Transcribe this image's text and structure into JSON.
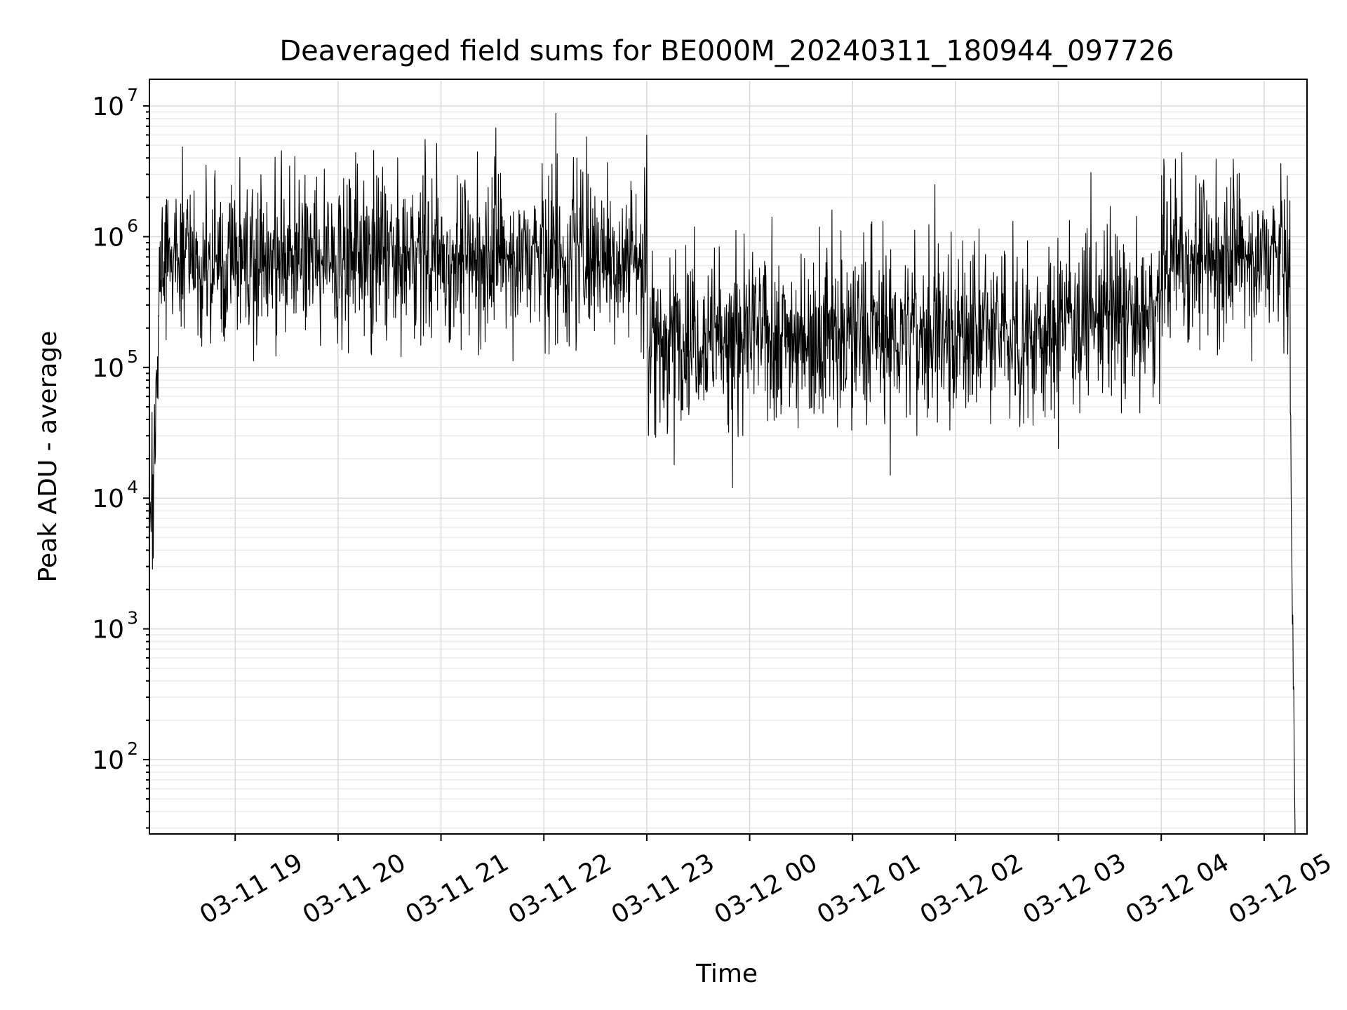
{
  "chart_data": {
    "type": "line",
    "title": "Deaveraged field sums for BE000M_20240311_180944_097726",
    "xlabel": "Time",
    "ylabel": "Peak ADU - average",
    "yscale": "log",
    "ylim": [
      27,
      16000000
    ],
    "xlim": [
      "2024-03-11 18:10",
      "2024-03-12 05:25"
    ],
    "grid": "major and minor",
    "line_color": "#000000",
    "x_ticks": [
      {
        "at": "2024-03-11 19:00",
        "label": "03-11 19"
      },
      {
        "at": "2024-03-11 20:00",
        "label": "03-11 20"
      },
      {
        "at": "2024-03-11 21:00",
        "label": "03-11 21"
      },
      {
        "at": "2024-03-11 22:00",
        "label": "03-11 22"
      },
      {
        "at": "2024-03-11 23:00",
        "label": "03-11 23"
      },
      {
        "at": "2024-03-12 00:00",
        "label": "03-12 00"
      },
      {
        "at": "2024-03-12 01:00",
        "label": "03-12 01"
      },
      {
        "at": "2024-03-12 02:00",
        "label": "03-12 02"
      },
      {
        "at": "2024-03-12 03:00",
        "label": "03-12 03"
      },
      {
        "at": "2024-03-12 04:00",
        "label": "03-12 04"
      },
      {
        "at": "2024-03-12 05:00",
        "label": "03-12 05"
      }
    ],
    "y_ticks": [
      {
        "value": 100,
        "base": "10",
        "exp": "2"
      },
      {
        "value": 1000,
        "base": "10",
        "exp": "3"
      },
      {
        "value": 10000,
        "base": "10",
        "exp": "4"
      },
      {
        "value": 100000,
        "base": "10",
        "exp": "5"
      },
      {
        "value": 1000000,
        "base": "10",
        "exp": "6"
      },
      {
        "value": 10000000,
        "base": "10",
        "exp": "7"
      }
    ],
    "series": [
      {
        "x_start": "2024-03-11 18:10",
        "x_end": "2024-03-12 05:18",
        "x_step_seconds": 15,
        "description_of_levels": [
          {
            "from": "2024-03-11 18:10",
            "to": "2024-03-11 18:15",
            "typical": 6000,
            "note": "rise from ~3000 to ~1e5"
          },
          {
            "from": "2024-03-11 18:15",
            "to": "2024-03-11 23:00",
            "typical": 700000,
            "low": 100000,
            "high": 8800000
          },
          {
            "from": "2024-03-11 23:00",
            "to": "2024-03-12 03:00",
            "typical": 180000,
            "low": 12000,
            "high": 2500000
          },
          {
            "from": "2024-03-12 03:00",
            "to": "2024-03-12 04:00",
            "typical": 250000,
            "low": 40000,
            "high": 3100000
          },
          {
            "from": "2024-03-12 04:00",
            "to": "2024-03-12 05:15",
            "typical": 700000,
            "low": 65000,
            "high": 4400000
          },
          {
            "from": "2024-03-12 05:15",
            "to": "2024-03-12 05:18",
            "typical": 3000,
            "note": "drop from ~1e5 to below 30"
          }
        ],
        "spikes": [
          {
            "x": "2024-03-11 20:26",
            "y": 3400000
          },
          {
            "x": "2024-03-11 21:32",
            "y": 6800000
          },
          {
            "x": "2024-03-11 22:07",
            "y": 8800000
          },
          {
            "x": "2024-03-11 22:25",
            "y": 5800000
          },
          {
            "x": "2024-03-11 23:00",
            "y": 6000000
          },
          {
            "x": "2024-03-11 23:16",
            "y": 18000
          },
          {
            "x": "2024-03-11 23:50",
            "y": 12000
          },
          {
            "x": "2024-03-12 00:48",
            "y": 1600000
          },
          {
            "x": "2024-03-12 01:22",
            "y": 15000
          },
          {
            "x": "2024-03-12 01:48",
            "y": 2500000
          },
          {
            "x": "2024-03-12 03:00",
            "y": 24000
          },
          {
            "x": "2024-03-12 03:19",
            "y": 3100000
          },
          {
            "x": "2024-03-12 04:12",
            "y": 4400000
          }
        ]
      }
    ]
  }
}
